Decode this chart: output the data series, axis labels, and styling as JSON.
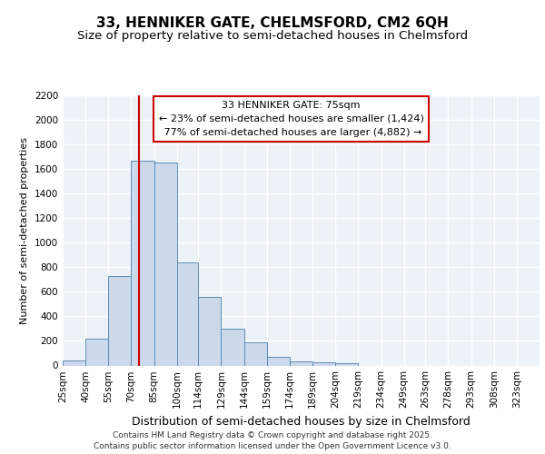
{
  "title1": "33, HENNIKER GATE, CHELMSFORD, CM2 6QH",
  "title2": "Size of property relative to semi-detached houses in Chelmsford",
  "xlabel": "Distribution of semi-detached houses by size in Chelmsford",
  "ylabel": "Number of semi-detached properties",
  "bin_edges": [
    25,
    40,
    55,
    70,
    85,
    100,
    114,
    129,
    144,
    159,
    174,
    189,
    204,
    219,
    234,
    249,
    263,
    278,
    293,
    308,
    323,
    338
  ],
  "bar_heights": [
    40,
    220,
    730,
    1670,
    1650,
    840,
    555,
    300,
    185,
    70,
    35,
    25,
    20,
    0,
    0,
    0,
    0,
    0,
    0,
    0,
    0
  ],
  "bar_color": "#ccd9ea",
  "bar_edge_color": "#5b8db8",
  "property_size": 75,
  "property_label": "33 HENNIKER GATE: 75sqm",
  "smaller_pct": "23%",
  "smaller_count": "1,424",
  "larger_pct": "77%",
  "larger_count": "4,882",
  "vline_color": "#cc0000",
  "annotation_box_color": "#cc0000",
  "ylim": [
    0,
    2200
  ],
  "yticks": [
    0,
    200,
    400,
    600,
    800,
    1000,
    1200,
    1400,
    1600,
    1800,
    2000,
    2200
  ],
  "background_color": "#edf2f9",
  "grid_color": "#ffffff",
  "footer": "Contains HM Land Registry data © Crown copyright and database right 2025.\nContains public sector information licensed under the Open Government Licence v3.0.",
  "title1_fontsize": 11,
  "title2_fontsize": 9.5,
  "xlabel_fontsize": 9,
  "ylabel_fontsize": 8,
  "tick_fontsize": 7.5,
  "footer_fontsize": 6.5,
  "annot_fontsize": 8
}
